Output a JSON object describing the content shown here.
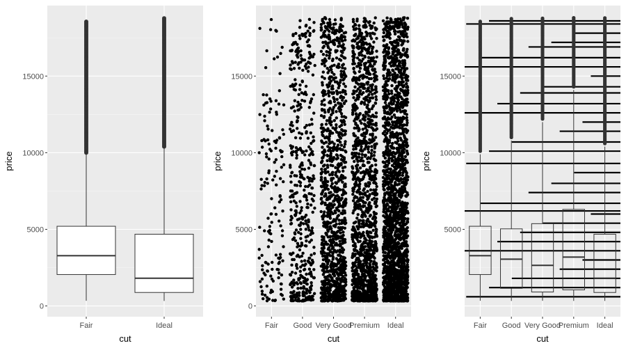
{
  "colors": {
    "panel_bg": "#EBEBEB",
    "grid_major": "#FFFFFF",
    "grid_minor": "#F5F5F5",
    "point": "#000000",
    "box_fill": "#FFFFFF",
    "box_line": "#333333",
    "outlier": "#333333",
    "tick_text": "#4D4D4D",
    "axis_title": "#000000"
  },
  "chart_data": [
    {
      "type": "boxplot",
      "xlabel": "cut",
      "ylabel": "price",
      "categories": [
        "Fair",
        "Ideal"
      ],
      "ylim": [
        -700,
        19600
      ],
      "yticks": [
        0,
        5000,
        10000,
        15000
      ],
      "ytick_labels": [
        "0",
        "5000",
        "10000",
        "15000"
      ],
      "grid": true,
      "boxes": [
        {
          "category": "Fair",
          "q1": 2050,
          "median": 3280,
          "q3": 5200,
          "whisker_low": 340,
          "whisker_high": 9900,
          "outlier_min": 10000,
          "outlier_max": 18570
        },
        {
          "category": "Ideal",
          "q1": 880,
          "median": 1810,
          "q3": 4680,
          "whisker_low": 330,
          "whisker_high": 10400,
          "outlier_min": 10400,
          "outlier_max": 18800
        }
      ]
    },
    {
      "type": "scatter",
      "jitter": true,
      "xlabel": "cut",
      "ylabel": "price",
      "categories": [
        "Fair",
        "Good",
        "Very Good",
        "Premium",
        "Ideal"
      ],
      "ylim": [
        -700,
        19600
      ],
      "yticks": [
        0,
        5000,
        10000,
        15000
      ],
      "ytick_labels": [
        "0",
        "5000",
        "10000",
        "15000"
      ],
      "grid": true,
      "price_range": [
        326,
        18823
      ],
      "relative_density": [
        0.03,
        0.09,
        0.22,
        0.26,
        0.4
      ]
    },
    {
      "type": "boxplot+errorbar",
      "xlabel": "cut",
      "ylabel": "price",
      "categories": [
        "Fair",
        "Good",
        "Very Good",
        "Premium",
        "Ideal"
      ],
      "ylim": [
        -700,
        19600
      ],
      "yticks": [
        5000,
        10000,
        15000
      ],
      "ytick_labels": [
        "5000",
        "10000",
        "15000"
      ],
      "grid": true,
      "boxes": [
        {
          "category": "Fair",
          "q1": 2050,
          "median": 3280,
          "q3": 5200,
          "whisker_low": 340,
          "whisker_high": 9900,
          "outlier_max": 18570
        },
        {
          "category": "Good",
          "q1": 1150,
          "median": 3050,
          "q3": 5030,
          "whisker_low": 330,
          "whisker_high": 10800,
          "outlier_max": 18790
        },
        {
          "category": "Very Good",
          "q1": 910,
          "median": 2650,
          "q3": 5370,
          "whisker_low": 340,
          "whisker_high": 12000,
          "outlier_max": 18820
        },
        {
          "category": "Premium",
          "q1": 1050,
          "median": 3190,
          "q3": 6300,
          "whisker_low": 330,
          "whisker_high": 14100,
          "outlier_max": 18820
        },
        {
          "category": "Ideal",
          "q1": 880,
          "median": 1810,
          "q3": 4680,
          "whisker_low": 330,
          "whisker_high": 10400,
          "outlier_max": 18800
        }
      ],
      "hlines": [
        600,
        1200,
        1800,
        2400,
        3000,
        3600,
        4200,
        4800,
        5400,
        6000,
        6200,
        6700,
        7400,
        8000,
        8700,
        9300,
        10100,
        10700,
        11400,
        12000,
        12600,
        13200,
        13900,
        14300,
        15000,
        15600,
        16200,
        16900,
        17200,
        17800,
        18400,
        18600
      ]
    }
  ]
}
